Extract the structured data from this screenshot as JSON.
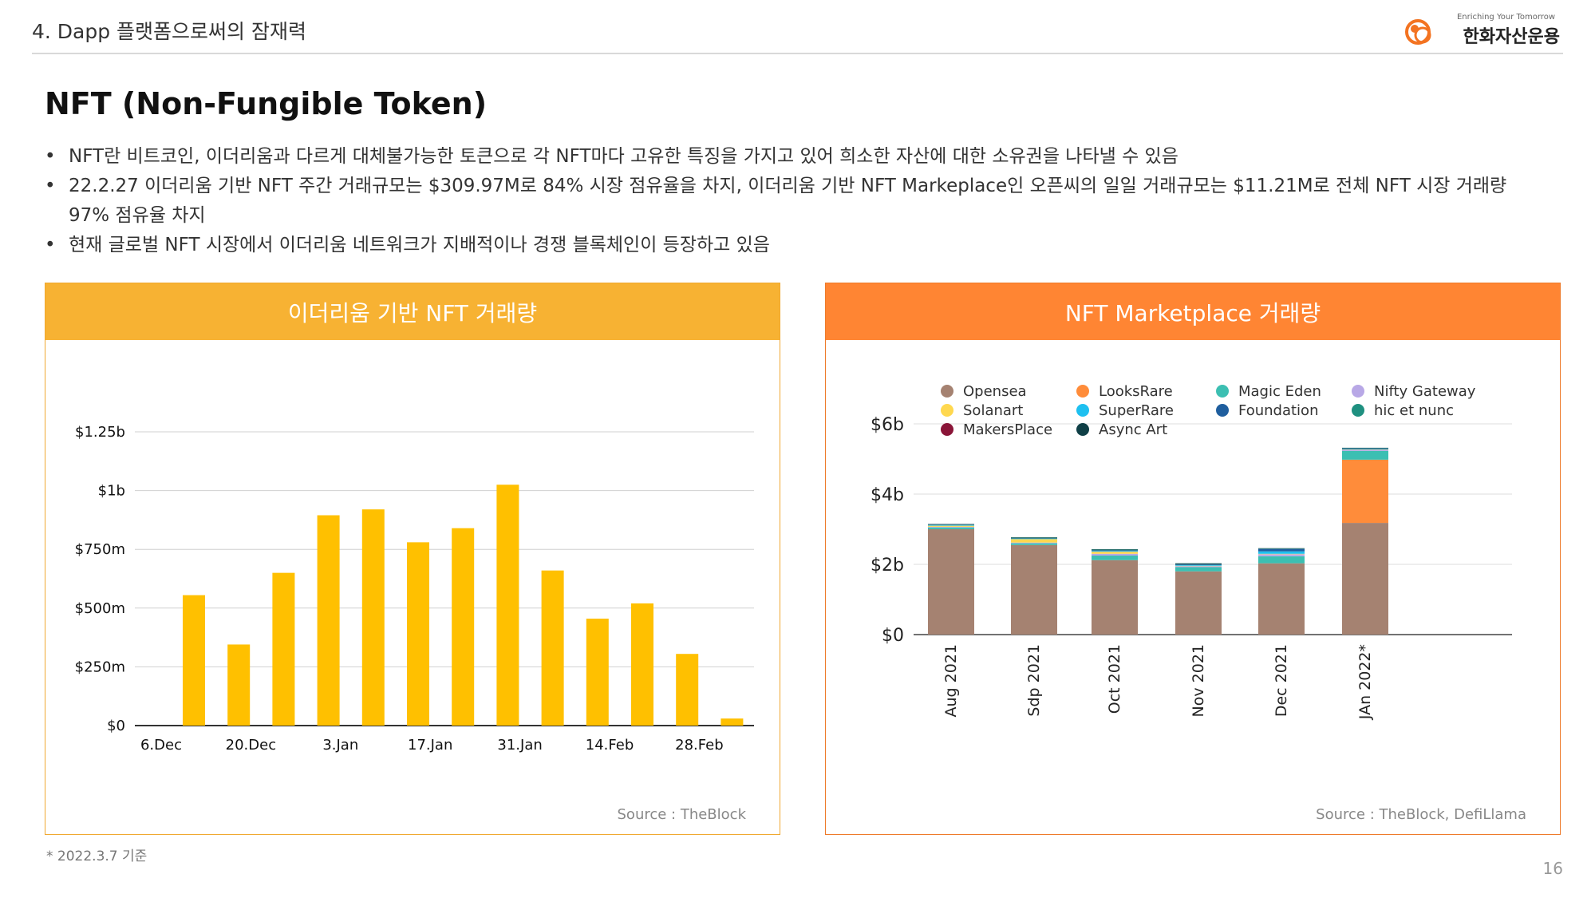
{
  "header": {
    "section_title": "4. Dapp 플랫폼으로써의 잠재력",
    "logo_tagline": "Enriching Your Tomorrow",
    "logo_name": "한화자산운용"
  },
  "page": {
    "title": "NFT (Non-Fungible Token)",
    "bullets": [
      "NFT란 비트코인, 이더리움과 다르게 대체불가능한 토큰으로 각 NFT마다 고유한 특징을 가지고 있어 희소한 자산에 대한 소유권을 나타낼 수 있음",
      "22.2.27 이더리움 기반 NFT 주간 거래규모는 $309.97M로 84% 시장 점유율을 차지, 이더리움 기반 NFT Markeplace인 오픈씨의 일일 거래규모는 $11.21M로 전체 NFT 시장 거래량 97% 점유율 차지",
      "현재 글로벌 NFT 시장에서 이더리움 네트워크가 지배적이나 경쟁 블록체인이 등장하고 있음"
    ],
    "footnote": "* 2022.3.7 기준",
    "page_number": "16"
  },
  "colors": {
    "bar_yellow": "#ffc000",
    "panel_left": "#f7b233",
    "panel_right": "#ff8533"
  },
  "chart_data": [
    {
      "type": "bar",
      "title": "이더리움 기반 NFT 거래량",
      "source": "Source : TheBlock",
      "ylim": [
        0,
        1250
      ],
      "y_unit": "millions USD",
      "y_ticks": [
        {
          "value": 0,
          "label": "$0"
        },
        {
          "value": 250,
          "label": "$250m"
        },
        {
          "value": 500,
          "label": "$500m"
        },
        {
          "value": 750,
          "label": "$750m"
        },
        {
          "value": 1000,
          "label": "$1b"
        },
        {
          "value": 1250,
          "label": "$1.25b"
        }
      ],
      "x_tick_labels": [
        "6.Dec",
        "20.Dec",
        "3.Jan",
        "17.Jan",
        "31.Jan",
        "14.Feb",
        "28.Feb"
      ],
      "values": [
        555,
        345,
        650,
        895,
        920,
        780,
        840,
        1025,
        660,
        455,
        520,
        305,
        30
      ],
      "color": "#ffc000"
    },
    {
      "type": "bar",
      "stacked": true,
      "title": "NFT Marketplace 거래량",
      "source": "Source : TheBlock, DefiLlama",
      "ylim": [
        0,
        6
      ],
      "y_unit": "billions USD",
      "y_ticks": [
        {
          "value": 0,
          "label": "$0"
        },
        {
          "value": 2,
          "label": "$2b"
        },
        {
          "value": 4,
          "label": "$4b"
        },
        {
          "value": 6,
          "label": "$6b"
        }
      ],
      "categories": [
        "Aug 2021",
        "Sdp 2021",
        "Oct 2021",
        "Nov 2021",
        "Dec 2021",
        "JAn 2022*"
      ],
      "series": [
        {
          "name": "Opensea",
          "color": "#a58271",
          "values": [
            3.0,
            2.55,
            2.12,
            1.8,
            2.03,
            3.18
          ]
        },
        {
          "name": "LooksRare",
          "color": "#ff8c3a",
          "values": [
            0,
            0,
            0,
            0,
            0,
            1.8
          ]
        },
        {
          "name": "Magic Eden",
          "color": "#3cbfb2",
          "values": [
            0.05,
            0.05,
            0.13,
            0.12,
            0.2,
            0.25
          ]
        },
        {
          "name": "Nifty Gateway",
          "color": "#b8a8e6",
          "values": [
            0.02,
            0.02,
            0.05,
            0.03,
            0.06,
            0.03
          ]
        },
        {
          "name": "Solanart",
          "color": "#ffd84f",
          "values": [
            0.03,
            0.1,
            0.06,
            0.01,
            0.01,
            0.01
          ]
        },
        {
          "name": "SuperRare",
          "color": "#1ec0f0",
          "values": [
            0.02,
            0.01,
            0.02,
            0.02,
            0.07,
            0.01
          ]
        },
        {
          "name": "Foundation",
          "color": "#1f5e9e",
          "values": [
            0.01,
            0.01,
            0.02,
            0.02,
            0.07,
            0.02
          ]
        },
        {
          "name": "hic et nunc",
          "color": "#1f9080",
          "values": [
            0.01,
            0.02,
            0.02,
            0.01,
            0.01,
            0.01
          ]
        },
        {
          "name": "MakersPlace",
          "color": "#8a1538",
          "values": [
            0.0,
            0.0,
            0.0,
            0.0,
            0.0,
            0.0
          ]
        },
        {
          "name": "Async Art",
          "color": "#0f3f46",
          "values": [
            0.01,
            0.01,
            0.01,
            0.02,
            0.01,
            0.01
          ]
        }
      ]
    }
  ]
}
